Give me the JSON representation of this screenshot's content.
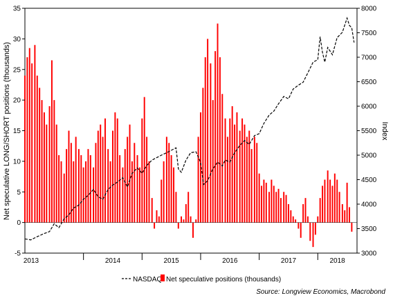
{
  "chart_data": {
    "type": "bar+line",
    "y_left": {
      "label": "Net speculative LONG/SHORT positions (thousands)",
      "ylim": [
        -5,
        35
      ],
      "ticks": [
        -5,
        0,
        5,
        10,
        15,
        20,
        25,
        30,
        35
      ]
    },
    "y_right": {
      "label": "Index",
      "ylim": [
        3000,
        8000
      ],
      "ticks": [
        3000,
        3500,
        4000,
        4500,
        5000,
        5500,
        6000,
        6500,
        7000,
        7500,
        8000
      ]
    },
    "x_axis": {
      "start": 2013.0,
      "end": 2018.67,
      "year_labels": [
        "2013",
        "2014",
        "2015",
        "2016",
        "2017",
        "2018"
      ]
    },
    "legend": {
      "placement": "bottom",
      "items": [
        {
          "name": "NASDAQ",
          "style": "dashed-line",
          "color": "#000000"
        },
        {
          "name": "Net speculative positions (thousands)",
          "style": "bar",
          "color": "#ff0000"
        }
      ]
    },
    "source": "Source: Longview Economics, Macrobond",
    "grid": false,
    "bar_color": "#ff0000",
    "line_color": "#000000",
    "series": [
      {
        "name": "Net speculative positions (thousands)",
        "kind": "bar",
        "points": [
          [
            2013.0,
            24
          ],
          [
            2013.04,
            27
          ],
          [
            2013.08,
            28.5
          ],
          [
            2013.12,
            26
          ],
          [
            2013.17,
            29
          ],
          [
            2013.21,
            24
          ],
          [
            2013.25,
            22
          ],
          [
            2013.29,
            20
          ],
          [
            2013.33,
            18
          ],
          [
            2013.37,
            16
          ],
          [
            2013.42,
            19
          ],
          [
            2013.46,
            26.5
          ],
          [
            2013.5,
            20
          ],
          [
            2013.54,
            16
          ],
          [
            2013.58,
            11
          ],
          [
            2013.62,
            10
          ],
          [
            2013.67,
            8
          ],
          [
            2013.71,
            12
          ],
          [
            2013.75,
            15
          ],
          [
            2013.79,
            13
          ],
          [
            2013.83,
            10
          ],
          [
            2013.87,
            14
          ],
          [
            2013.92,
            12
          ],
          [
            2013.96,
            11
          ],
          [
            2014.0,
            9
          ],
          [
            2014.04,
            10
          ],
          [
            2014.08,
            12
          ],
          [
            2014.12,
            11
          ],
          [
            2014.17,
            9
          ],
          [
            2014.21,
            13
          ],
          [
            2014.25,
            15
          ],
          [
            2014.29,
            16
          ],
          [
            2014.33,
            14
          ],
          [
            2014.37,
            17
          ],
          [
            2014.42,
            12
          ],
          [
            2014.46,
            10
          ],
          [
            2014.5,
            15
          ],
          [
            2014.54,
            18
          ],
          [
            2014.58,
            17
          ],
          [
            2014.62,
            11
          ],
          [
            2014.67,
            9
          ],
          [
            2014.71,
            12
          ],
          [
            2014.75,
            14
          ],
          [
            2014.79,
            16
          ],
          [
            2014.83,
            10
          ],
          [
            2014.87,
            13
          ],
          [
            2014.92,
            11
          ],
          [
            2014.96,
            9
          ],
          [
            2015.0,
            17
          ],
          [
            2015.04,
            20.5
          ],
          [
            2015.08,
            14
          ],
          [
            2015.12,
            10
          ],
          [
            2015.17,
            4
          ],
          [
            2015.21,
            -1
          ],
          [
            2015.25,
            2
          ],
          [
            2015.29,
            1
          ],
          [
            2015.33,
            7
          ],
          [
            2015.37,
            10
          ],
          [
            2015.42,
            14
          ],
          [
            2015.46,
            13
          ],
          [
            2015.5,
            11
          ],
          [
            2015.54,
            9
          ],
          [
            2015.58,
            5
          ],
          [
            2015.62,
            -1
          ],
          [
            2015.67,
            1
          ],
          [
            2015.71,
            0.5
          ],
          [
            2015.75,
            3
          ],
          [
            2015.79,
            5
          ],
          [
            2015.83,
            1
          ],
          [
            2015.87,
            -2.5
          ],
          [
            2015.92,
            0.5
          ],
          [
            2015.96,
            14
          ],
          [
            2016.0,
            18
          ],
          [
            2016.04,
            22
          ],
          [
            2016.08,
            27
          ],
          [
            2016.12,
            30
          ],
          [
            2016.17,
            26
          ],
          [
            2016.21,
            20
          ],
          [
            2016.25,
            28
          ],
          [
            2016.29,
            32.5
          ],
          [
            2016.33,
            27
          ],
          [
            2016.37,
            21
          ],
          [
            2016.42,
            17
          ],
          [
            2016.46,
            14
          ],
          [
            2016.5,
            17
          ],
          [
            2016.54,
            19
          ],
          [
            2016.58,
            16
          ],
          [
            2016.62,
            18
          ],
          [
            2016.67,
            15
          ],
          [
            2016.71,
            17
          ],
          [
            2016.75,
            16
          ],
          [
            2016.79,
            14
          ],
          [
            2016.83,
            15
          ],
          [
            2016.87,
            12
          ],
          [
            2016.92,
            14
          ],
          [
            2016.96,
            13
          ],
          [
            2017.0,
            8
          ],
          [
            2017.04,
            6
          ],
          [
            2017.08,
            7
          ],
          [
            2017.12,
            6.5
          ],
          [
            2017.17,
            5
          ],
          [
            2017.21,
            7
          ],
          [
            2017.25,
            6
          ],
          [
            2017.29,
            5
          ],
          [
            2017.33,
            5.5
          ],
          [
            2017.37,
            4
          ],
          [
            2017.42,
            5
          ],
          [
            2017.46,
            4.5
          ],
          [
            2017.5,
            3
          ],
          [
            2017.54,
            2
          ],
          [
            2017.58,
            1
          ],
          [
            2017.62,
            0.5
          ],
          [
            2017.67,
            -1
          ],
          [
            2017.71,
            -2.5
          ],
          [
            2017.75,
            3
          ],
          [
            2017.79,
            4
          ],
          [
            2017.83,
            1
          ],
          [
            2017.87,
            -3
          ],
          [
            2017.92,
            -4
          ],
          [
            2017.96,
            -2
          ],
          [
            2018.0,
            1
          ],
          [
            2018.04,
            4
          ],
          [
            2018.08,
            6
          ],
          [
            2018.12,
            7
          ],
          [
            2018.17,
            8.5
          ],
          [
            2018.21,
            7
          ],
          [
            2018.25,
            6
          ],
          [
            2018.29,
            8
          ],
          [
            2018.33,
            7
          ],
          [
            2018.37,
            5
          ],
          [
            2018.42,
            3
          ],
          [
            2018.46,
            2
          ],
          [
            2018.5,
            6.5
          ],
          [
            2018.54,
            2.5
          ],
          [
            2018.58,
            -1.5
          ]
        ]
      },
      {
        "name": "NASDAQ",
        "kind": "line",
        "points": [
          [
            2013.0,
            3290
          ],
          [
            2013.1,
            3270
          ],
          [
            2013.2,
            3330
          ],
          [
            2013.33,
            3400
          ],
          [
            2013.42,
            3440
          ],
          [
            2013.5,
            3600
          ],
          [
            2013.58,
            3520
          ],
          [
            2013.67,
            3700
          ],
          [
            2013.75,
            3780
          ],
          [
            2013.83,
            3920
          ],
          [
            2013.92,
            3980
          ],
          [
            2014.0,
            4100
          ],
          [
            2014.08,
            4180
          ],
          [
            2014.17,
            4300
          ],
          [
            2014.25,
            4150
          ],
          [
            2014.33,
            4100
          ],
          [
            2014.42,
            4300
          ],
          [
            2014.5,
            4390
          ],
          [
            2014.58,
            4450
          ],
          [
            2014.67,
            4540
          ],
          [
            2014.75,
            4350
          ],
          [
            2014.83,
            4630
          ],
          [
            2014.92,
            4740
          ],
          [
            2015.0,
            4630
          ],
          [
            2015.08,
            4790
          ],
          [
            2015.17,
            4900
          ],
          [
            2015.25,
            4950
          ],
          [
            2015.33,
            5000
          ],
          [
            2015.42,
            5050
          ],
          [
            2015.5,
            5100
          ],
          [
            2015.58,
            5150
          ],
          [
            2015.62,
            4720
          ],
          [
            2015.67,
            4650
          ],
          [
            2015.75,
            4900
          ],
          [
            2015.83,
            5050
          ],
          [
            2015.92,
            5070
          ],
          [
            2016.0,
            4850
          ],
          [
            2016.05,
            4400
          ],
          [
            2016.12,
            4480
          ],
          [
            2016.2,
            4700
          ],
          [
            2016.29,
            4860
          ],
          [
            2016.37,
            4780
          ],
          [
            2016.42,
            4900
          ],
          [
            2016.5,
            4860
          ],
          [
            2016.58,
            5050
          ],
          [
            2016.67,
            5200
          ],
          [
            2016.75,
            5300
          ],
          [
            2016.83,
            5220
          ],
          [
            2016.92,
            5400
          ],
          [
            2017.0,
            5440
          ],
          [
            2017.08,
            5650
          ],
          [
            2017.17,
            5820
          ],
          [
            2017.25,
            5900
          ],
          [
            2017.33,
            6050
          ],
          [
            2017.42,
            6200
          ],
          [
            2017.5,
            6150
          ],
          [
            2017.58,
            6350
          ],
          [
            2017.67,
            6430
          ],
          [
            2017.75,
            6490
          ],
          [
            2017.83,
            6680
          ],
          [
            2017.92,
            6900
          ],
          [
            2018.0,
            6950
          ],
          [
            2018.04,
            7420
          ],
          [
            2018.08,
            7100
          ],
          [
            2018.12,
            6900
          ],
          [
            2018.17,
            7200
          ],
          [
            2018.25,
            7050
          ],
          [
            2018.33,
            7400
          ],
          [
            2018.42,
            7510
          ],
          [
            2018.5,
            7800
          ],
          [
            2018.54,
            7650
          ],
          [
            2018.58,
            7600
          ],
          [
            2018.62,
            7300
          ]
        ]
      }
    ]
  }
}
